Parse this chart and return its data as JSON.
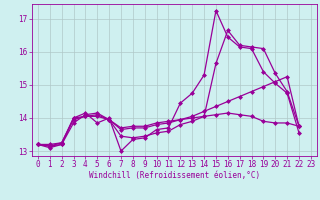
{
  "xlabel": "Windchill (Refroidissement éolien,°C)",
  "background_color": "#cff0f0",
  "grid_color": "#b0c8c8",
  "line_color": "#990099",
  "xlim": [
    -0.5,
    23.5
  ],
  "ylim": [
    12.85,
    17.45
  ],
  "yticks": [
    13,
    14,
    15,
    16,
    17
  ],
  "xticks": [
    0,
    1,
    2,
    3,
    4,
    5,
    6,
    7,
    8,
    9,
    10,
    11,
    12,
    13,
    14,
    15,
    16,
    17,
    18,
    19,
    20,
    21,
    22,
    23
  ],
  "series": [
    {
      "x": [
        0,
        1,
        2,
        3,
        4,
        5,
        6,
        7,
        8,
        9,
        10,
        11,
        12,
        13,
        14,
        15,
        16,
        17,
        18,
        19,
        20,
        21,
        22,
        23
      ],
      "y": [
        13.2,
        13.1,
        13.2,
        14.0,
        14.15,
        13.85,
        14.0,
        13.0,
        13.35,
        13.4,
        13.65,
        13.7,
        14.45,
        14.75,
        15.3,
        17.25,
        16.45,
        16.15,
        16.1,
        15.4,
        15.05,
        14.75,
        13.55,
        null
      ]
    },
    {
      "x": [
        0,
        1,
        2,
        3,
        4,
        5,
        6,
        7,
        8,
        9,
        10,
        11,
        12,
        13,
        14,
        15,
        16,
        17,
        18,
        19,
        20,
        21,
        22,
        23
      ],
      "y": [
        13.2,
        13.15,
        13.2,
        13.85,
        14.1,
        14.15,
        13.95,
        13.45,
        13.4,
        13.45,
        13.55,
        13.6,
        13.8,
        13.9,
        14.05,
        15.65,
        16.65,
        16.2,
        16.15,
        16.1,
        15.35,
        14.8,
        13.75,
        null
      ]
    },
    {
      "x": [
        0,
        1,
        2,
        3,
        4,
        5,
        6,
        7,
        8,
        9,
        10,
        11,
        12,
        13,
        14,
        15,
        16,
        17,
        18,
        19,
        20,
        21,
        22,
        23
      ],
      "y": [
        13.2,
        13.15,
        13.25,
        14.0,
        14.05,
        14.05,
        13.95,
        13.65,
        13.7,
        13.7,
        13.8,
        13.85,
        13.95,
        14.05,
        14.2,
        14.35,
        14.5,
        14.65,
        14.8,
        14.95,
        15.1,
        15.25,
        13.75,
        null
      ]
    },
    {
      "x": [
        0,
        1,
        2,
        3,
        4,
        5,
        6,
        7,
        8,
        9,
        10,
        11,
        12,
        13,
        14,
        15,
        16,
        17,
        18,
        19,
        20,
        21,
        22,
        23
      ],
      "y": [
        13.2,
        13.2,
        13.25,
        13.95,
        14.05,
        14.1,
        13.95,
        13.7,
        13.75,
        13.75,
        13.85,
        13.9,
        13.95,
        14.0,
        14.05,
        14.1,
        14.15,
        14.1,
        14.05,
        13.9,
        13.85,
        13.85,
        13.75,
        null
      ]
    }
  ],
  "marker": "D",
  "markersize": 2.0,
  "linewidth": 0.9,
  "tick_fontsize": 5.5,
  "xlabel_fontsize": 5.5
}
